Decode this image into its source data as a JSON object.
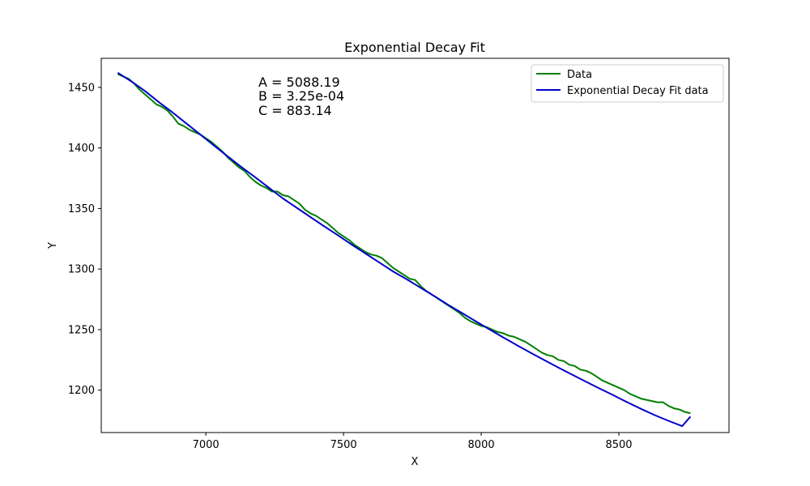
{
  "chart_data": {
    "type": "line",
    "title": "Exponential Decay Fit",
    "xlabel": "X",
    "ylabel": "Y",
    "xlim": [
      6620,
      8900
    ],
    "ylim": [
      1165,
      1474
    ],
    "xticks": [
      7000,
      7500,
      8000,
      8500
    ],
    "yticks": [
      1200,
      1250,
      1300,
      1350,
      1400,
      1450
    ],
    "grid": false,
    "legend_position": "top-right",
    "annotations": [
      "A = 5088.19",
      "B = 3.25e-04",
      "C = 883.14"
    ],
    "series": [
      {
        "name": "Data",
        "color": "#008000",
        "x": [
          6680,
          6700,
          6720,
          6740,
          6760,
          6780,
          6800,
          6820,
          6840,
          6860,
          6880,
          6900,
          6920,
          6940,
          6960,
          6980,
          7000,
          7020,
          7040,
          7060,
          7080,
          7100,
          7120,
          7140,
          7160,
          7180,
          7200,
          7220,
          7240,
          7260,
          7280,
          7300,
          7320,
          7340,
          7360,
          7380,
          7400,
          7420,
          7440,
          7460,
          7480,
          7500,
          7520,
          7540,
          7560,
          7580,
          7600,
          7620,
          7640,
          7660,
          7680,
          7700,
          7720,
          7740,
          7760,
          7780,
          7800,
          7820,
          7840,
          7860,
          7880,
          7900,
          7920,
          7940,
          7960,
          7980,
          8000,
          8020,
          8040,
          8060,
          8080,
          8100,
          8120,
          8140,
          8160,
          8180,
          8200,
          8220,
          8240,
          8260,
          8280,
          8300,
          8320,
          8340,
          8360,
          8380,
          8400,
          8420,
          8440,
          8460,
          8480,
          8500,
          8520,
          8540,
          8560,
          8580,
          8600,
          8620,
          8640,
          8660,
          8680,
          8700,
          8720,
          8740,
          8760
        ],
        "y": [
          1461,
          1459,
          1457,
          1453,
          1448,
          1444,
          1440,
          1436,
          1434,
          1431,
          1426,
          1420,
          1418,
          1415,
          1413,
          1411,
          1408,
          1405,
          1401,
          1397,
          1392,
          1388,
          1384,
          1381,
          1376,
          1372,
          1369,
          1367,
          1364,
          1364,
          1361,
          1360,
          1357,
          1354,
          1349,
          1346,
          1344,
          1341,
          1338,
          1334,
          1330,
          1327,
          1324,
          1320,
          1317,
          1314,
          1312,
          1311,
          1309,
          1305,
          1301,
          1298,
          1295,
          1292,
          1291,
          1286,
          1282,
          1279,
          1276,
          1273,
          1270,
          1267,
          1264,
          1260,
          1257,
          1255,
          1253,
          1252,
          1250,
          1248,
          1247,
          1245,
          1244,
          1242,
          1240,
          1237,
          1234,
          1231,
          1229,
          1228,
          1225,
          1224,
          1221,
          1220,
          1217,
          1216,
          1214,
          1211,
          1208,
          1206,
          1204,
          1202,
          1200,
          1197,
          1195,
          1193,
          1192,
          1191,
          1190,
          1190,
          1187,
          1185,
          1184,
          1182,
          1181
        ]
      },
      {
        "name": "Exponential Decay Fit data",
        "color": "#0000cc",
        "x": [
          6680,
          6730,
          6780,
          6830,
          6880,
          6930,
          6980,
          7030,
          7080,
          7130,
          7180,
          7230,
          7280,
          7330,
          7380,
          7430,
          7480,
          7530,
          7580,
          7630,
          7680,
          7730,
          7780,
          7830,
          7880,
          7930,
          7980,
          8030,
          8080,
          8130,
          8180,
          8230,
          8280,
          8330,
          8380,
          8430,
          8480,
          8530,
          8580,
          8630,
          8680,
          8730,
          8760
        ],
        "y": [
          1462.1,
          1454.9,
          1446.8,
          1437.7,
          1429.1,
          1420.0,
          1411.0,
          1401.9,
          1392.9,
          1384.0,
          1375.6,
          1366.9,
          1358.3,
          1350.6,
          1342.9,
          1335.3,
          1327.8,
          1320.2,
          1312.8,
          1305.4,
          1298.0,
          1291.5,
          1284.5,
          1277.6,
          1270.4,
          1263.7,
          1256.9,
          1250.2,
          1243.5,
          1237.1,
          1230.8,
          1224.7,
          1218.7,
          1212.8,
          1207.1,
          1201.4,
          1195.8,
          1190.1,
          1184.6,
          1179.4,
          1174.7,
          1170.3,
          1178.2
        ]
      }
    ]
  }
}
